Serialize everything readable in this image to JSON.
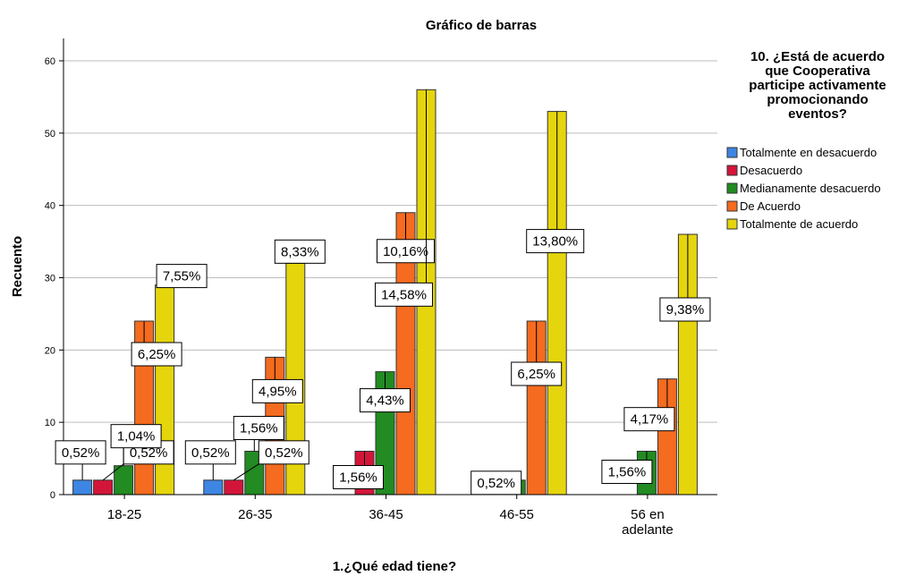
{
  "chart_data": {
    "type": "bar",
    "title": "Gráfico de barras",
    "xlabel": "1.¿Qué edad tiene?",
    "ylabel": "Recuento",
    "ylim": [
      0,
      63
    ],
    "yticks": [
      0,
      10,
      20,
      30,
      40,
      50,
      60
    ],
    "grid": true,
    "legend_position": "right",
    "legend_title": [
      "10. ¿Está de acuerdo",
      "que Cooperativa",
      "participe activamente",
      "promocionando",
      "eventos?"
    ],
    "categories": [
      "18-25",
      "26-35",
      "36-45",
      "46-55",
      "56 en adelante"
    ],
    "category_label_lines": [
      [
        "18-25"
      ],
      [
        "26-35"
      ],
      [
        "36-45"
      ],
      [
        "46-55"
      ],
      [
        "56 en",
        "adelante"
      ]
    ],
    "series": [
      {
        "name": "Totalmente en desacuerdo",
        "color": "#3d86e3",
        "values": [
          2,
          2,
          0,
          0,
          0
        ],
        "labels": [
          "0,52%",
          "0,52%",
          null,
          null,
          null
        ]
      },
      {
        "name": "Desacuerdo",
        "color": "#d4153a",
        "values": [
          2,
          2,
          6,
          0,
          0
        ],
        "labels": [
          "0,52%",
          "0,52%",
          "1,56%",
          null,
          null
        ]
      },
      {
        "name": "Medianamente desacuerdo",
        "color": "#228b22",
        "values": [
          4,
          6,
          17,
          2,
          6
        ],
        "labels": [
          "1,04%",
          "1,56%",
          "4,43%",
          "0,52%",
          "1,56%"
        ]
      },
      {
        "name": "De Acuerdo",
        "color": "#f56b1f",
        "values": [
          24,
          19,
          39,
          24,
          16
        ],
        "labels": [
          "6,25%",
          "4,95%",
          "10,16%",
          "6,25%",
          "4,17%"
        ]
      },
      {
        "name": "Totalmente de acuerdo",
        "color": "#e5d50d",
        "values": [
          29,
          32,
          56,
          53,
          36
        ],
        "labels": [
          "7,55%",
          "8,33%",
          "14,58%",
          "13,80%",
          "9,38%"
        ]
      }
    ]
  }
}
